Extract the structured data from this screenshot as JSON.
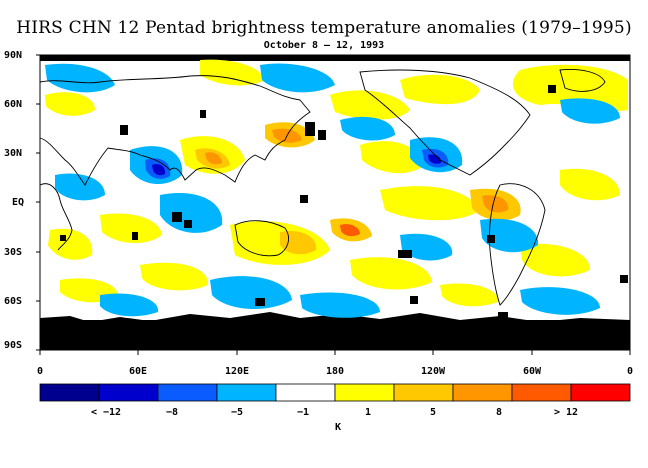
{
  "title": "HIRS CHN 12 Pentad brightness temperature anomalies (1979–1995)",
  "subtitle": "October 8 – 12, 1993",
  "lat_labels": [
    "90N",
    "60N",
    "30N",
    "EQ",
    "30S",
    "60S",
    "90S"
  ],
  "lon_labels": [
    "0",
    "60E",
    "120E",
    "180",
    "120W",
    "60W",
    "0"
  ],
  "colorbar": {
    "colors": [
      "#00008f",
      "#0000cc",
      "#0a5cff",
      "#00b4ff",
      "#ffffff",
      "#ffff00",
      "#ffc800",
      "#ff9600",
      "#ff5a00",
      "#ff0000"
    ],
    "labels": [
      "< −12",
      "−8",
      "−5",
      "−1",
      "1",
      "5",
      "8",
      "> 12"
    ],
    "unit": "K"
  },
  "colors": {
    "missing": "#000000",
    "coast": "#000000"
  }
}
